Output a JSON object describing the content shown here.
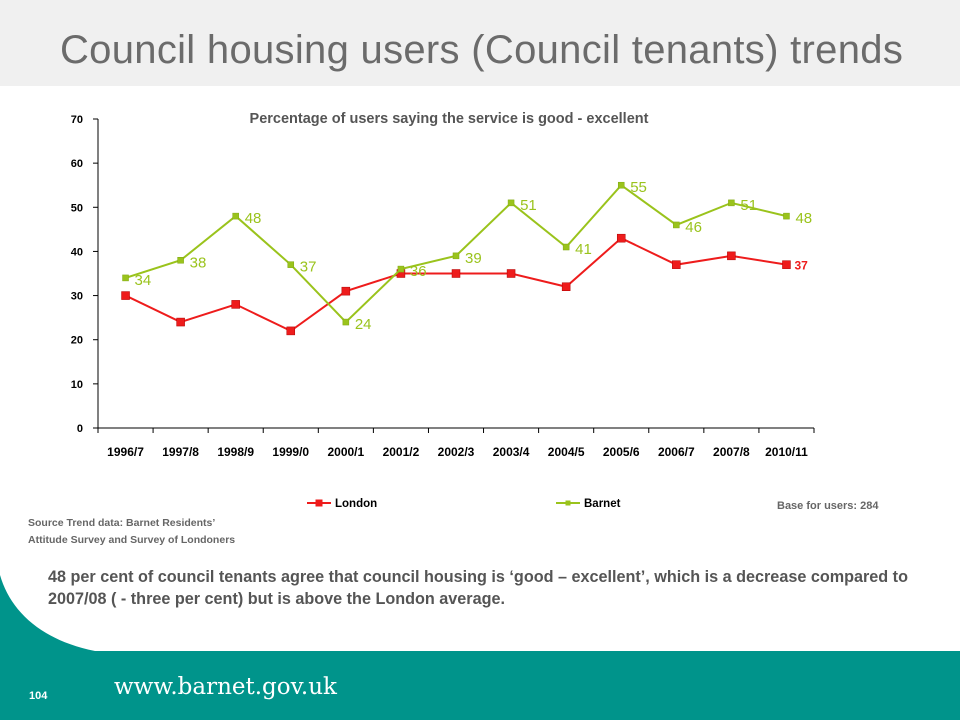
{
  "slide": {
    "title": "Council housing users (Council tenants) trends",
    "source_line1": "Source Trend data:  Barnet   Residents’",
    "source_line2": "Attitude  Survey and Survey of Londoners",
    "base": "Base for users: 284",
    "summary": "48 per cent of council tenants agree that council housing is ‘good – excellent’, which is  a decrease compared to 2007/08 ( - three per cent) but is above the London average.",
    "page_number": "104",
    "url": "www.barnet.gov.uk"
  },
  "colors": {
    "london": "#ee1c1c",
    "barnet": "#9ac31c",
    "footer": "#00948b",
    "title_band": "#f0f0f0"
  },
  "chart_data": {
    "type": "line",
    "title": "Percentage of users saying the service is good - excellent",
    "categories": [
      "1996/7",
      "1997/8",
      "1998/9",
      "1999/0",
      "2000/1",
      "2001/2",
      "2002/3",
      "2003/4",
      "2004/5",
      "2005/6",
      "2006/7",
      "2007/8",
      "2010/11"
    ],
    "ylim": [
      0,
      70
    ],
    "yticks": [
      0,
      10,
      20,
      30,
      40,
      50,
      60,
      70
    ],
    "grid": false,
    "legend": "bottom",
    "series": [
      {
        "name": "London",
        "values": [
          30,
          24,
          28,
          22,
          31,
          35,
          35,
          35,
          32,
          43,
          37,
          39,
          37
        ],
        "labels": [
          null,
          null,
          null,
          null,
          null,
          null,
          null,
          null,
          null,
          null,
          null,
          null,
          "37"
        ]
      },
      {
        "name": "Barnet",
        "values": [
          34,
          38,
          48,
          37,
          24,
          36,
          39,
          51,
          41,
          55,
          46,
          51,
          48
        ],
        "labels": [
          "34",
          "38",
          "48",
          "37",
          "24",
          "36",
          "39",
          "51",
          "41",
          "55",
          "46",
          "51",
          "48"
        ]
      }
    ]
  }
}
